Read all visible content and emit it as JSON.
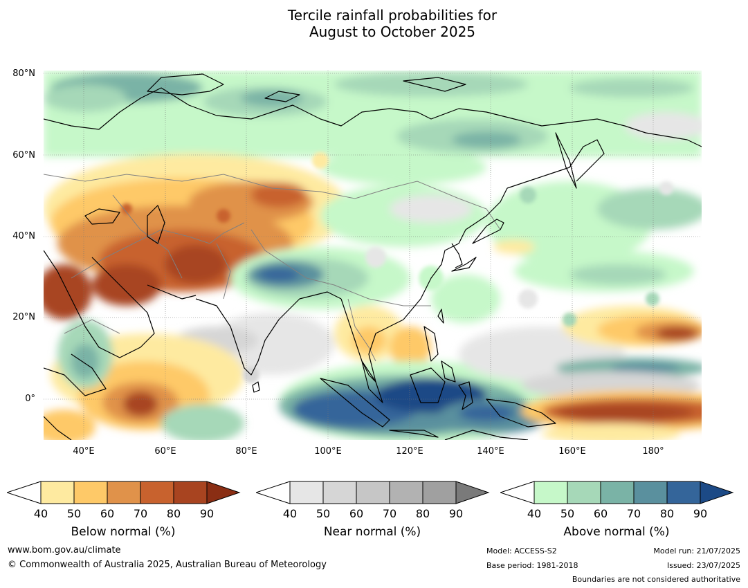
{
  "title": {
    "line1": "Tercile rainfall probabilities for",
    "line2": "August to October 2025"
  },
  "map": {
    "region": "Asia, Indian Ocean and western Pacific",
    "lat_labels": [
      "80°N",
      "60°N",
      "40°N",
      "20°N",
      "0°"
    ],
    "lon_labels": [
      "40°E",
      "60°E",
      "80°E",
      "100°E",
      "120°E",
      "140°E",
      "160°E",
      "180°"
    ],
    "colors": {
      "below": [
        "#feeaa0",
        "#fec968",
        "#e0924a",
        "#c8622e",
        "#a84420",
        "#8a2e14"
      ],
      "near": [
        "#e6e6e6",
        "#d6d6d6",
        "#c6c6c6",
        "#b2b2b2",
        "#a0a0a0",
        "#7a7a7a"
      ],
      "above": [
        "#c6f8c9",
        "#a6d8b8",
        "#7ab3a6",
        "#5a909e",
        "#34659a",
        "#1c4a86"
      ],
      "coast": "#000000",
      "borders": "#808080"
    }
  },
  "colorbars": {
    "below": {
      "label": "Below normal (%)",
      "ticks": [
        "40",
        "50",
        "60",
        "70",
        "80",
        "90"
      ]
    },
    "near": {
      "label": "Near normal (%)",
      "ticks": [
        "40",
        "50",
        "60",
        "70",
        "80",
        "90"
      ]
    },
    "above": {
      "label": "Above normal (%)",
      "ticks": [
        "40",
        "50",
        "60",
        "70",
        "80",
        "90"
      ]
    }
  },
  "footer": {
    "website": "www.bom.gov.au/climate",
    "copyright": "© Commonwealth of Australia 2025, Australian Bureau of Meteorology",
    "model": "Model: ACCESS-S2",
    "base_period": "Base period: 1981-2018",
    "model_run": "Model run: 21/07/2025",
    "issued": "Issued: 23/07/2025",
    "disclaimer": "Boundaries are not considered authoritative"
  }
}
